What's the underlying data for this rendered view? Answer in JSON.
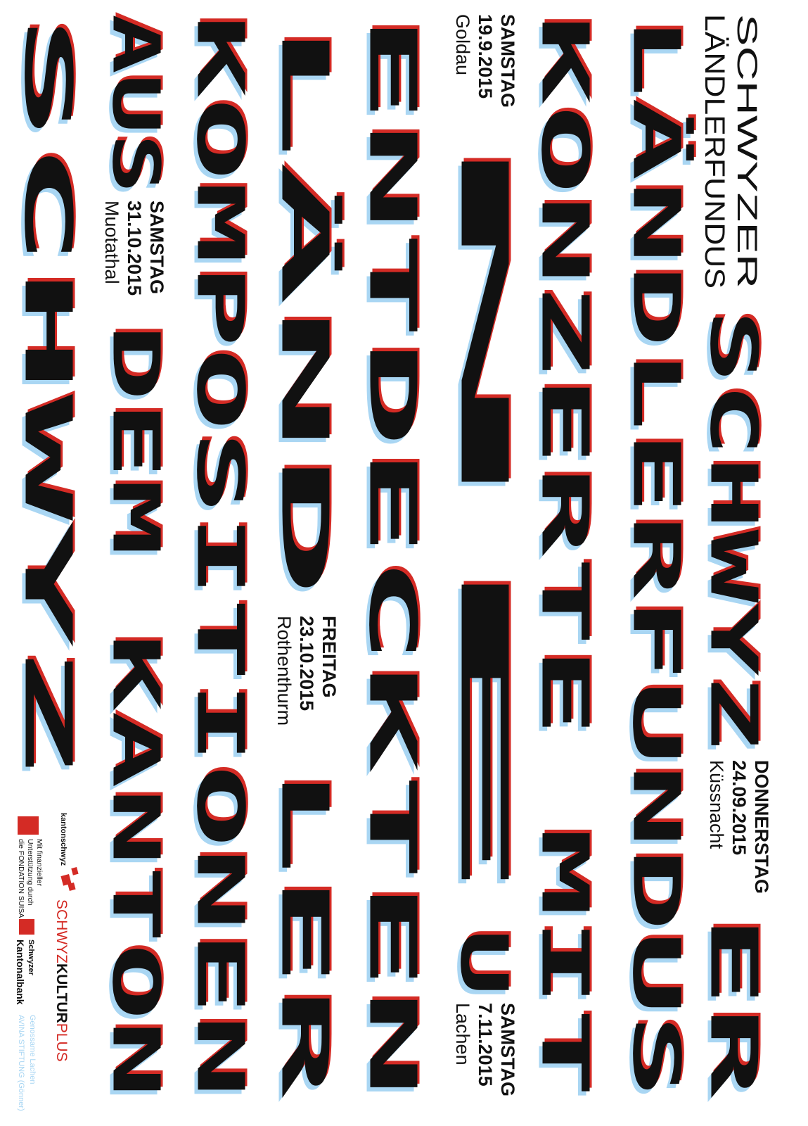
{
  "colors": {
    "blue": "#a9d6f3",
    "red": "#d42b25",
    "black": "#111111"
  },
  "title": {
    "line1": "SCHWYZER",
    "line2": "LÄNDLERFUNDUS"
  },
  "headline": {
    "w1": "SCHWYZ",
    "w1b": "ER",
    "w2": "LÄNDLERFUNDUS",
    "w3": "KONZERTE MIT",
    "w4a": "N",
    "w4b": "E",
    "w4c": "U",
    "w5": "ENTDECKTEN",
    "w6a": "LÄND",
    "w6b": "LER",
    "w7": "KOMPOSITIONEN",
    "w8a": "AUS",
    "w8b": "DEM KANTON",
    "w9": "SCHWYZ"
  },
  "events": [
    {
      "day": "DONNERSTAG",
      "date": "24.09.2015",
      "place": "Küssnacht"
    },
    {
      "day": "SAMSTAG",
      "date": "19.9.2015",
      "place": "Goldau"
    },
    {
      "day": "SAMSTAG",
      "date": "7.11.2015",
      "place": "Lachen"
    },
    {
      "day": "FREITAG",
      "date": "23.10.2015",
      "place": "Rothenthurm"
    },
    {
      "day": "SAMSTAG",
      "date": "31.10.2015",
      "place": "Muotathal"
    }
  ],
  "sponsors": {
    "suisa_logo": "FONDATION SUISA",
    "suisa_line1": "Mit finanzieller",
    "suisa_line2": "Unterstützung durch",
    "suisa_line3": "die FONDATION SUISA",
    "kanton": "kantonschwyz",
    "kultur_a": "SCHWYZ",
    "kultur_b": "KULTUR",
    "kultur_c": "PLUS",
    "bank_line1": "Schwyzer",
    "bank_line2": "Kantonalbank",
    "goenner_line1": "Genossame Lachen",
    "goenner_line2": "AVINA STIFTUNG (Gönner)"
  }
}
